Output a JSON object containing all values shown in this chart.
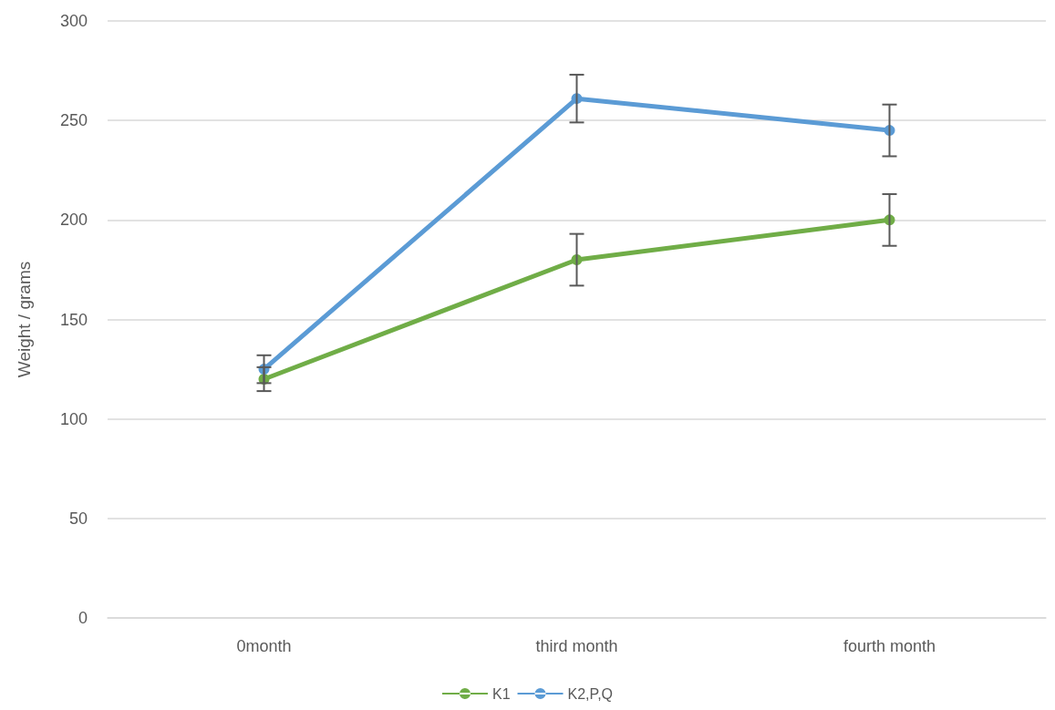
{
  "chart_data": {
    "type": "line",
    "ylabel": "Weight / grams",
    "categories": [
      "0month",
      "third month",
      "fourth month"
    ],
    "series": [
      {
        "name": "K1",
        "color": "#70ad47",
        "values": [
          120,
          180,
          200
        ],
        "errors": [
          6,
          13,
          13
        ]
      },
      {
        "name": "K2,P,Q",
        "color": "#5b9bd5",
        "values": [
          125,
          261,
          245
        ],
        "errors": [
          7,
          12,
          13
        ]
      }
    ],
    "ylim": [
      0,
      300
    ],
    "yticks": [
      0,
      50,
      100,
      150,
      200,
      250,
      300
    ],
    "grid": "y",
    "legend": "bottom",
    "marker": "circle",
    "line_style": "solid"
  }
}
